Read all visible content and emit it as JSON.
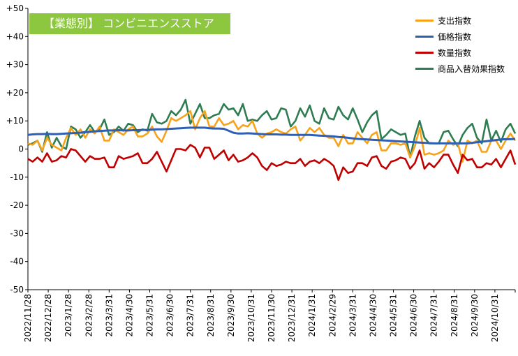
{
  "chart_data": {
    "type": "line",
    "title": "【業態別】 コンビニエンスストア",
    "xlabel": "",
    "ylabel": "",
    "ylim": [
      -50,
      50
    ],
    "y_ticks": [
      "+50",
      "+40",
      "+30",
      "+20",
      "+10",
      "0",
      "-10",
      "-20",
      "-30",
      "-40",
      "-50"
    ],
    "x_tick_labels": [
      "2022/11/28",
      "2022/12/28",
      "2023/1/28",
      "2023/2/28",
      "2023/3/31",
      "2023/4/30",
      "2023/5/31",
      "2023/6/30",
      "2023/7/31",
      "2023/8/31",
      "2023/9/30",
      "2023/10/31",
      "2023/11/30",
      "2023/12/31",
      "2024/1/31",
      "2024/2/29",
      "2024/3/31",
      "2024/4/30",
      "2024/5/31",
      "2024/6/30",
      "2024/7/31",
      "2024/8/31",
      "2024/9/30",
      "2024/10/31"
    ],
    "grid": false,
    "legend_position": "top-right",
    "series": [
      {
        "name": "支出指数",
        "color": "#F7A21B",
        "values": [
          2,
          1.5,
          3,
          -0.5,
          4,
          1.5,
          0.5,
          -0.5,
          4,
          7.5,
          5,
          7,
          4,
          7,
          5.5,
          8,
          3,
          3,
          7,
          6,
          5,
          7,
          8,
          4.5,
          4.5,
          5.5,
          8,
          4.5,
          2.5,
          6.5,
          11,
          10,
          11,
          12,
          13.5,
          7,
          11,
          13.5,
          8,
          8,
          11,
          8.5,
          9,
          10,
          7,
          8.5,
          8,
          10,
          5.5,
          4,
          5.5,
          6,
          7,
          6,
          5.5,
          7,
          8,
          3,
          5,
          7.5,
          6,
          7.5,
          5,
          4,
          4,
          1,
          5,
          2,
          2,
          6,
          4,
          2,
          5,
          6,
          -0.5,
          -0.5,
          2,
          2,
          1.5,
          2,
          -3,
          1,
          7.5,
          -2,
          -1.5,
          -2,
          -1.5,
          -0.5,
          3,
          1.5,
          2,
          -4.5,
          3,
          2,
          3,
          -1,
          -1,
          3,
          3,
          0,
          3,
          5.5,
          3
        ]
      },
      {
        "name": "価格指数",
        "color": "#2E5FB5",
        "values": [
          5,
          5.2,
          5.3,
          5.3,
          5.4,
          5.3,
          5.3,
          5.4,
          5.5,
          5.6,
          5.7,
          5.8,
          6,
          6.1,
          6.3,
          6.4,
          6.5,
          6.6,
          6.6,
          6.7,
          6.6,
          6.6,
          6.7,
          6.7,
          6.8,
          6.8,
          6.9,
          7,
          7,
          7.1,
          7.2,
          7.3,
          7.4,
          7.5,
          7.6,
          7.6,
          7.6,
          7.6,
          7.4,
          7.3,
          7.3,
          7.2,
          6.5,
          5.8,
          5.5,
          5.5,
          5.6,
          5.5,
          5.4,
          5.3,
          5.2,
          5.2,
          5.2,
          5.1,
          5.1,
          5,
          5,
          5,
          5,
          5,
          4.9,
          4.8,
          4.7,
          4.6,
          4.5,
          4.3,
          4.2,
          4,
          3.8,
          3.6,
          3.5,
          3.4,
          3.3,
          3.2,
          3.1,
          3,
          2.9,
          2.8,
          2.7,
          2.6,
          2.5,
          2.4,
          2.3,
          2.2,
          2.1,
          2,
          2,
          2,
          2,
          2,
          2,
          2,
          2,
          2.2,
          2.4,
          2.6,
          2.8,
          3,
          3.2,
          3.4,
          3.5,
          3.5,
          3.6
        ]
      },
      {
        "name": "数量指数",
        "color": "#C00000",
        "values": [
          -3.5,
          -4.5,
          -3,
          -4.5,
          -1.5,
          -4.5,
          -4,
          -2.5,
          -3,
          0,
          -0.5,
          -2.5,
          -4.5,
          -2.5,
          -3.5,
          -3.5,
          -3,
          -6.5,
          -6.5,
          -2.5,
          -3.5,
          -3,
          -2.5,
          -1.5,
          -5,
          -5,
          -3.5,
          -1,
          -4.5,
          -8,
          -4,
          0,
          0,
          -0.5,
          1.5,
          0.5,
          -3,
          0.5,
          0.5,
          -3.5,
          -2,
          -0.5,
          -4,
          -2,
          -4.5,
          -4,
          -3,
          -1.5,
          -3,
          -6,
          -7.5,
          -5,
          -6,
          -5.5,
          -4.5,
          -5,
          -5,
          -3.5,
          -6,
          -4.5,
          -4,
          -5,
          -3.5,
          -4.5,
          -6,
          -11,
          -6.5,
          -8.5,
          -8,
          -5,
          -5,
          -6,
          -3,
          -2.5,
          -6,
          -7,
          -4.5,
          -4,
          -3,
          -3.5,
          -7,
          -5,
          -0.5,
          -7,
          -5,
          -6.5,
          -4.5,
          -2,
          -2,
          -5.5,
          -8.5,
          -2,
          -4,
          -3.5,
          -6.5,
          -6.5,
          -5,
          -5.5,
          -3.5,
          -6.5,
          -3.5,
          -0.5,
          -5.5
        ]
      },
      {
        "name": "商品入替効果指数",
        "color": "#2E7D52",
        "values": [
          1.5,
          2,
          3,
          -1,
          6,
          0.5,
          4,
          1,
          0,
          8,
          7,
          4,
          6,
          8.5,
          6,
          7,
          10.5,
          5,
          6,
          8,
          6.5,
          9,
          8.5,
          6,
          7,
          6.5,
          12.5,
          9.5,
          9,
          10,
          13.5,
          12,
          14,
          17.5,
          9,
          12.5,
          16,
          11,
          11,
          12,
          12.5,
          16,
          14,
          14.5,
          12,
          16,
          10,
          10.5,
          10,
          12,
          13.5,
          10.5,
          11,
          14.5,
          14,
          8,
          10,
          14.5,
          11.5,
          15.5,
          10,
          9,
          14.5,
          11,
          10.5,
          15,
          12,
          10.5,
          14.5,
          10.5,
          6,
          9.5,
          12,
          13.5,
          3.5,
          5,
          7,
          6,
          5,
          5.5,
          -3,
          4.5,
          10,
          4,
          2,
          2,
          2,
          6,
          6.5,
          3.5,
          1,
          5,
          7.5,
          9,
          4,
          2,
          10.5,
          3,
          6.5,
          2.5,
          7,
          9,
          5.5
        ]
      }
    ]
  }
}
